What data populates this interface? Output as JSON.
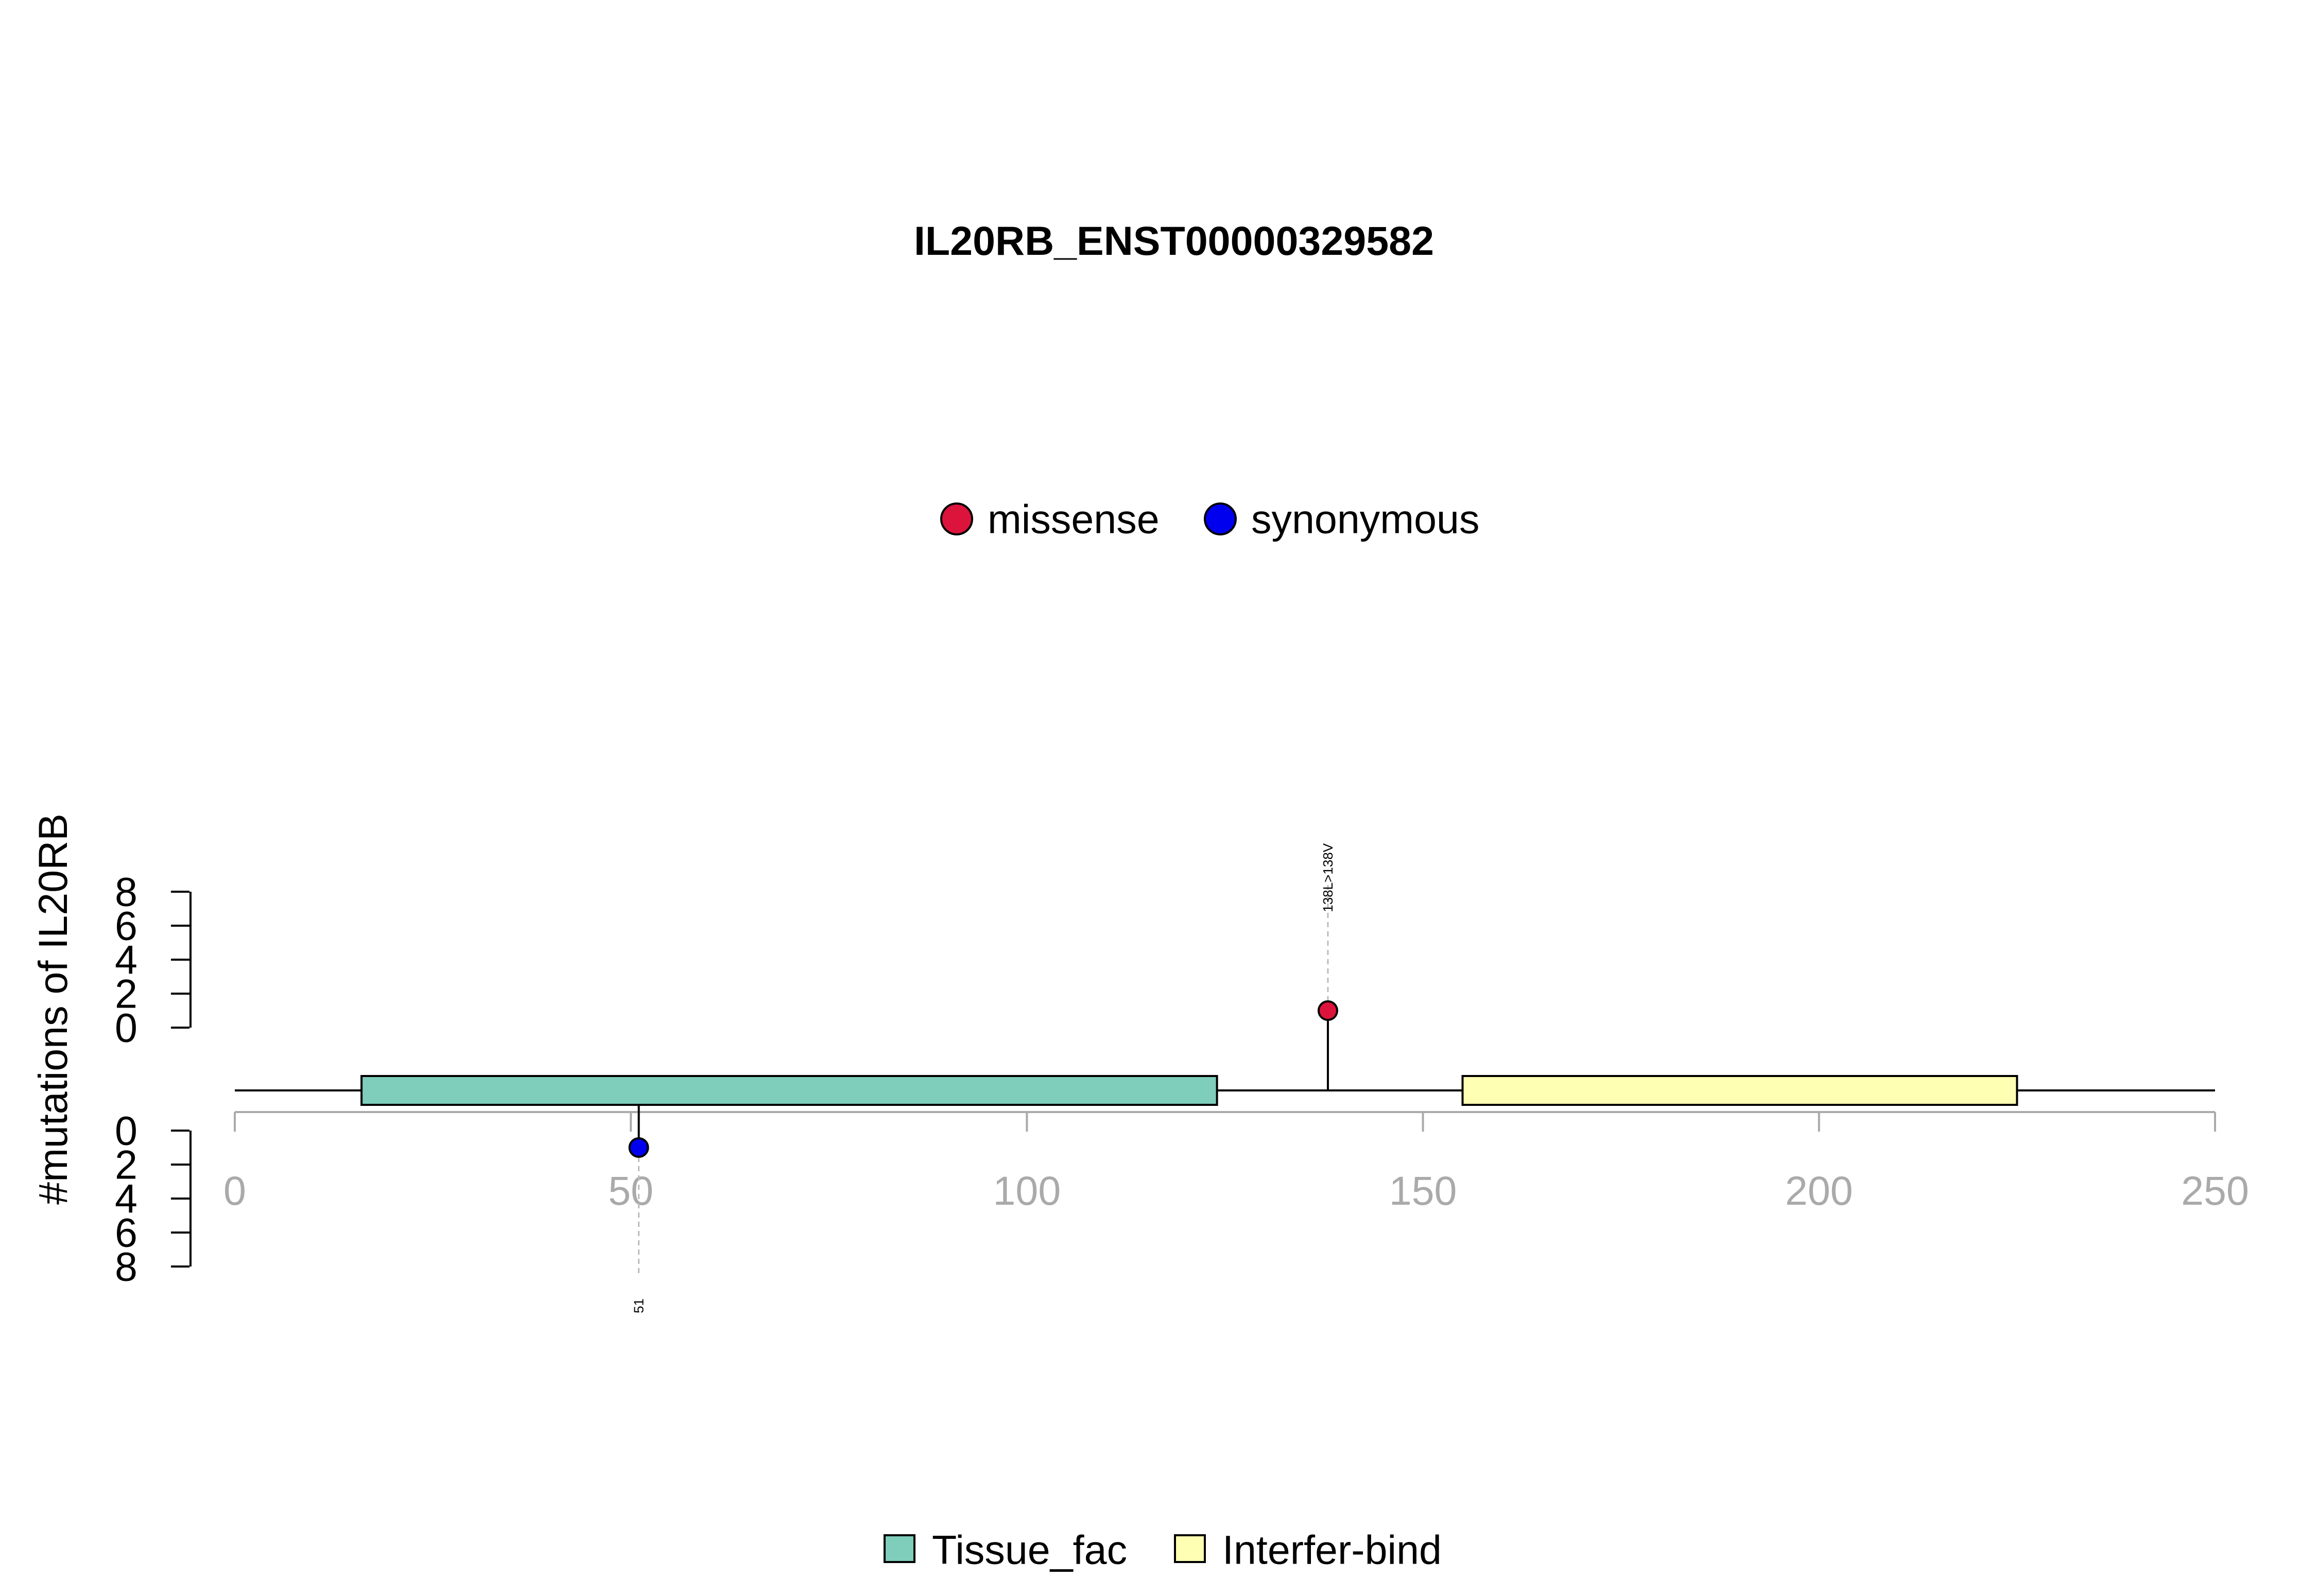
{
  "chart_data": {
    "type": "lollipop",
    "title": "IL20RB_ENST00000329582",
    "ylabel": "#mutations of IL20RB",
    "xlim": [
      0,
      250
    ],
    "x_ticks": [
      "0",
      "50",
      "100",
      "150",
      "200",
      "250"
    ],
    "y_ticks_top": [
      "0",
      "2",
      "4",
      "6",
      "8"
    ],
    "y_ticks_bottom": [
      "0",
      "2",
      "4",
      "6",
      "8"
    ],
    "ylim": [
      0,
      8
    ],
    "protein_length": 250,
    "mutation_legend": [
      {
        "name": "missense",
        "color": "#DC143C"
      },
      {
        "name": "synonymous",
        "color": "#0000EE"
      }
    ],
    "domain_legend": [
      {
        "name": "Tissue_fac",
        "color": "#7FCDBB"
      },
      {
        "name": "Interfer-bind",
        "color": "#FFFFB3"
      }
    ],
    "domains": [
      {
        "name": "Tissue_fac",
        "start": 16,
        "end": 124,
        "color": "#7FCDBB"
      },
      {
        "name": "Interfer-bind",
        "start": 155,
        "end": 225,
        "color": "#FFFFB3"
      }
    ],
    "mutations": [
      {
        "position": 138,
        "count": 1,
        "type": "missense",
        "side": "top",
        "label": "138L>138V",
        "color": "#DC143C"
      },
      {
        "position": 51,
        "count": 1,
        "type": "synonymous",
        "side": "bottom",
        "label": "51",
        "color": "#0000EE"
      }
    ]
  }
}
